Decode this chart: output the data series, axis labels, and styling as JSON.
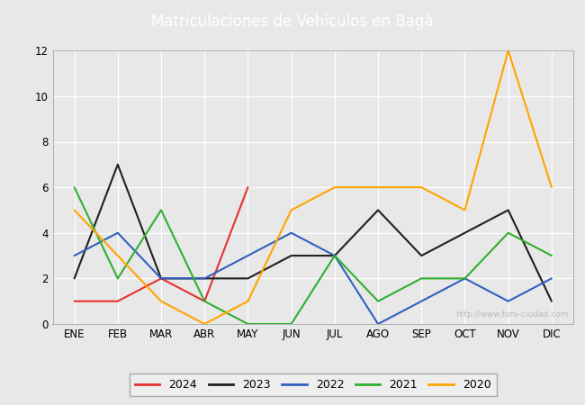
{
  "title": "Matriculaciones de Vehiculos en Bagà",
  "title_color": "#ffffff",
  "header_bg_color": "#5b9bd5",
  "months": [
    "ENE",
    "FEB",
    "MAR",
    "ABR",
    "MAY",
    "JUN",
    "JUL",
    "AGO",
    "SEP",
    "OCT",
    "NOV",
    "DIC"
  ],
  "series": {
    "2024": {
      "color": "#e83030",
      "data": [
        1,
        1,
        2,
        1,
        6,
        null,
        null,
        null,
        null,
        null,
        null,
        null
      ]
    },
    "2023": {
      "color": "#202020",
      "data": [
        2,
        7,
        2,
        2,
        2,
        3,
        3,
        5,
        3,
        4,
        5,
        1
      ]
    },
    "2022": {
      "color": "#3060c0",
      "data": [
        3,
        4,
        2,
        2,
        3,
        4,
        3,
        0,
        1,
        2,
        1,
        2
      ]
    },
    "2021": {
      "color": "#30b030",
      "data": [
        6,
        2,
        5,
        1,
        0,
        0,
        3,
        1,
        2,
        2,
        4,
        3
      ]
    },
    "2020": {
      "color": "#ffa500",
      "data": [
        5,
        3,
        1,
        0,
        1,
        5,
        6,
        6,
        6,
        5,
        12,
        6
      ]
    }
  },
  "ylim": [
    0,
    12
  ],
  "yticks": [
    0,
    2,
    4,
    6,
    8,
    10,
    12
  ],
  "plot_bg_color": "#e8e8e8",
  "grid_color": "#ffffff",
  "watermark": "http://www.foro-ciudad.com",
  "legend_order": [
    "2024",
    "2023",
    "2022",
    "2021",
    "2020"
  ],
  "fig_bg_color": "#e8e8e8"
}
